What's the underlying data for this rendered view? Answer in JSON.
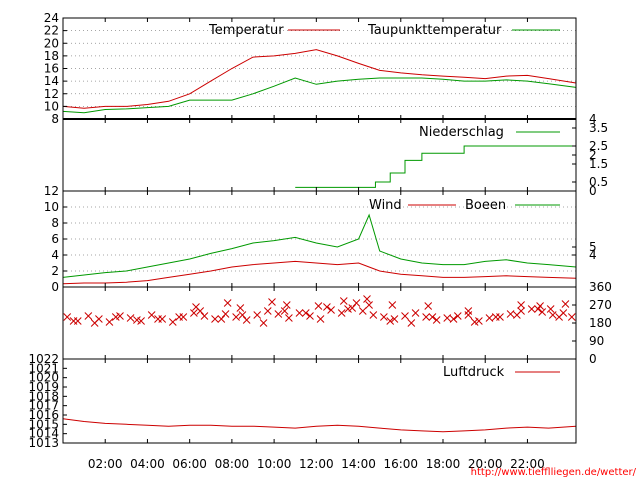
{
  "source_url": "http://www.tiefflliegen.de/wetter/",
  "x_axis": {
    "tick_labels": [
      "02:00",
      "04:00",
      "06:00",
      "08:00",
      "10:00",
      "12:00",
      "14:00",
      "16:00",
      "18:00",
      "20:00",
      "22:00"
    ],
    "tick_hours": [
      2,
      4,
      6,
      8,
      10,
      12,
      14,
      16,
      18,
      20,
      22
    ],
    "range_hours": [
      0,
      24.3
    ]
  },
  "colors": {
    "red": "#cc0000",
    "green": "#009900",
    "grid": "#888888",
    "axis": "#000000"
  },
  "chart_data": [
    {
      "type": "line",
      "name": "temperature-panel",
      "ylim": [
        8,
        24
      ],
      "y_ticks": [
        8,
        10,
        12,
        14,
        16,
        18,
        20,
        22,
        24
      ],
      "grid": true,
      "series": [
        {
          "name": "Temperatur",
          "color": "#cc0000",
          "x": [
            0,
            1,
            2,
            3,
            4,
            5,
            6,
            7,
            8,
            9,
            10,
            11,
            12,
            13,
            14,
            15,
            16,
            17,
            18,
            19,
            20,
            21,
            22,
            23,
            24.3
          ],
          "values": [
            10,
            9.7,
            10,
            10,
            10.3,
            10.8,
            12,
            14,
            16,
            17.8,
            18,
            18.4,
            19,
            18,
            16.8,
            15.7,
            15.3,
            15,
            14.8,
            14.6,
            14.4,
            14.8,
            14.9,
            14.4,
            13.7
          ]
        },
        {
          "name": "Taupunkttemperatur",
          "color": "#009900",
          "x": [
            0,
            1,
            2,
            3,
            4,
            5,
            6,
            7,
            8,
            9,
            10,
            11,
            12,
            13,
            14,
            15,
            16,
            17,
            18,
            19,
            20,
            21,
            22,
            23,
            24.3
          ],
          "values": [
            9.2,
            9,
            9.5,
            9.6,
            9.8,
            10,
            11,
            11,
            11,
            12,
            13.2,
            14.5,
            13.5,
            14,
            14.3,
            14.5,
            14.5,
            14.5,
            14.3,
            14,
            14,
            14.2,
            14,
            13.6,
            13
          ]
        }
      ]
    },
    {
      "type": "line",
      "name": "precipitation-panel",
      "ylim": [
        0,
        4
      ],
      "y_ticks_right": [
        0,
        0.5,
        1.5,
        2,
        2.5,
        3.5,
        4
      ],
      "y_tick_labels_right": [
        "0",
        "0.5",
        "1.5",
        "2",
        "2.5",
        "3.5",
        "4"
      ],
      "series": [
        {
          "name": "Niederschlag",
          "color": "#009900",
          "x": [
            11,
            12.5,
            13.5,
            14.3,
            14.8,
            15.5,
            16.2,
            17,
            18.3,
            19,
            20,
            22,
            24.3
          ],
          "values": [
            0.2,
            0.2,
            0.2,
            0.2,
            0.5,
            1,
            1.7,
            2.1,
            2.1,
            2.5,
            2.5,
            2.5,
            2.5
          ]
        }
      ]
    },
    {
      "type": "line",
      "name": "wind-panel",
      "ylim": [
        0,
        12
      ],
      "y_ticks": [
        0,
        2,
        4,
        6,
        8,
        10,
        12
      ],
      "y_ticks_right": [
        4,
        5
      ],
      "grid": true,
      "series": [
        {
          "name": "Wind",
          "color": "#cc0000",
          "x": [
            0,
            1,
            2,
            3,
            4,
            5,
            6,
            7,
            8,
            9,
            10,
            11,
            12,
            13,
            14,
            14.5,
            15,
            16,
            17,
            18,
            19,
            20,
            21,
            22,
            23,
            24.3
          ],
          "values": [
            0.4,
            0.5,
            0.5,
            0.6,
            0.8,
            1.2,
            1.6,
            2,
            2.5,
            2.8,
            3,
            3.2,
            3,
            2.8,
            3,
            2.5,
            2,
            1.6,
            1.4,
            1.2,
            1.2,
            1.3,
            1.4,
            1.3,
            1.2,
            1.1
          ]
        },
        {
          "name": "Boeen",
          "color": "#009900",
          "x": [
            0,
            1,
            2,
            3,
            4,
            5,
            6,
            7,
            8,
            9,
            10,
            11,
            12,
            13,
            14,
            14.5,
            15,
            16,
            17,
            18,
            19,
            20,
            21,
            22,
            23,
            24.3
          ],
          "values": [
            1.2,
            1.5,
            1.8,
            2,
            2.5,
            3,
            3.5,
            4.2,
            4.8,
            5.5,
            5.8,
            6.2,
            5.5,
            5,
            6,
            9,
            4.5,
            3.5,
            3,
            2.8,
            2.8,
            3.2,
            3.4,
            3,
            2.8,
            2.5
          ]
        }
      ]
    },
    {
      "type": "scatter",
      "name": "wind-direction-panel",
      "ylim": [
        0,
        360
      ],
      "y_ticks_right": [
        0,
        90,
        180,
        270,
        360
      ],
      "series": [
        {
          "name": "",
          "color": "#cc0000",
          "marker": "x",
          "x": [
            0.2,
            0.7,
            1.2,
            1.7,
            2.2,
            2.7,
            3.2,
            3.7,
            4.2,
            4.7,
            5.2,
            5.7,
            6.2,
            6.7,
            7.2,
            7.7,
            8.2,
            8.7,
            9.2,
            9.7,
            10.2,
            10.7,
            11.2,
            11.7,
            12.2,
            12.7,
            13.2,
            13.7,
            14.2,
            14.7,
            15.2,
            15.7,
            16.2,
            16.7,
            17.2,
            17.7,
            18.2,
            18.7,
            19.2,
            19.7,
            20.2,
            20.7,
            21.2,
            21.7,
            22.2,
            22.7,
            23.2,
            23.7,
            24.1,
            0.5,
            1.5,
            2.5,
            3.5,
            4.5,
            5.5,
            6.5,
            7.5,
            8.5,
            9.5,
            10.5,
            11.5,
            12.5,
            13.5,
            14.5,
            15.5,
            16.5,
            17.5,
            18.5,
            19.5,
            20.5,
            21.5,
            22.5,
            23.5,
            6.3,
            7.8,
            8.4,
            9.9,
            10.6,
            12.1,
            13.3,
            13.9,
            14.4,
            15.6,
            17.3,
            19.2,
            21.7,
            22.6,
            23.1,
            23.8
          ],
          "values": [
            210,
            190,
            215,
            200,
            185,
            215,
            205,
            190,
            220,
            200,
            185,
            210,
            230,
            215,
            200,
            225,
            210,
            195,
            220,
            240,
            225,
            205,
            230,
            215,
            200,
            245,
            230,
            255,
            240,
            220,
            210,
            200,
            215,
            230,
            210,
            195,
            205,
            215,
            220,
            190,
            205,
            210,
            225,
            240,
            250,
            235,
            220,
            230,
            210,
            190,
            180,
            210,
            195,
            200,
            210,
            240,
            200,
            220,
            180,
            240,
            230,
            260,
            250,
            270,
            190,
            180,
            210,
            200,
            185,
            210,
            220,
            250,
            210,
            260,
            280,
            255,
            285,
            270,
            265,
            290,
            280,
            300,
            270,
            265,
            240,
            270,
            265,
            250,
            275
          ]
        }
      ]
    },
    {
      "type": "line",
      "name": "pressure-panel",
      "ylim": [
        1013,
        1022
      ],
      "y_ticks": [
        1013,
        1014,
        1015,
        1016,
        1017,
        1018,
        1019,
        1020,
        1021,
        1022
      ],
      "series": [
        {
          "name": "Luftdruck",
          "color": "#cc0000",
          "x": [
            0,
            1,
            2,
            3,
            4,
            5,
            6,
            7,
            8,
            9,
            10,
            11,
            12,
            13,
            14,
            15,
            16,
            17,
            18,
            19,
            20,
            21,
            22,
            23,
            24.3
          ],
          "values": [
            1015.6,
            1015.3,
            1015.1,
            1015,
            1014.9,
            1014.8,
            1014.9,
            1014.9,
            1014.8,
            1014.8,
            1014.7,
            1014.6,
            1014.8,
            1014.9,
            1014.8,
            1014.6,
            1014.4,
            1014.3,
            1014.2,
            1014.3,
            1014.4,
            1014.6,
            1014.7,
            1014.6,
            1014.8
          ]
        }
      ]
    }
  ]
}
